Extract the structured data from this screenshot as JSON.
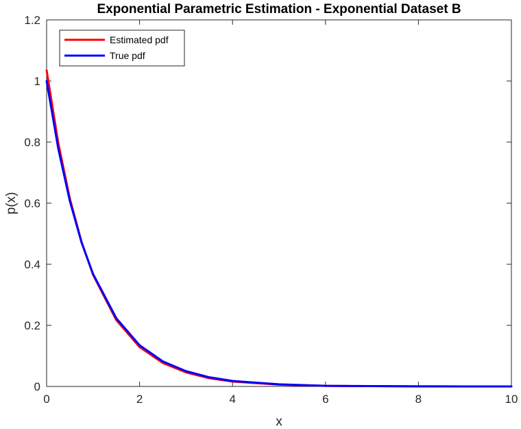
{
  "chart_data": {
    "type": "line",
    "title": "Exponential Parametric Estimation - Exponential Dataset B",
    "xlabel": "x",
    "ylabel": "p(x)",
    "xlim": [
      0,
      10
    ],
    "ylim": [
      0,
      1.2
    ],
    "x_ticks": [
      0,
      2,
      4,
      6,
      8,
      10
    ],
    "x_tick_labels": [
      "0",
      "2",
      "4",
      "6",
      "8",
      "10"
    ],
    "y_ticks": [
      0,
      0.2,
      0.4,
      0.6,
      0.8,
      1,
      1.2
    ],
    "y_tick_labels": [
      "0",
      "0.2",
      "0.4",
      "0.6",
      "0.8",
      "1",
      "1.2"
    ],
    "grid": false,
    "legend_position": "top-left",
    "x": [
      0,
      0.25,
      0.5,
      0.75,
      1,
      1.5,
      2,
      2.5,
      3,
      3.5,
      4,
      5,
      6,
      7,
      8,
      9,
      10
    ],
    "series": [
      {
        "name": "Estimated pdf",
        "color": "#ff0000",
        "values": [
          1.035,
          0.798,
          0.615,
          0.474,
          0.365,
          0.217,
          0.129,
          0.077,
          0.046,
          0.027,
          0.016,
          0.006,
          0.002,
          0.001,
          0.0003,
          0.0001,
          4e-05
        ]
      },
      {
        "name": "True pdf",
        "color": "#0000ff",
        "values": [
          1.0,
          0.779,
          0.607,
          0.472,
          0.368,
          0.223,
          0.135,
          0.082,
          0.05,
          0.03,
          0.018,
          0.007,
          0.002,
          0.001,
          0.0003,
          0.0001,
          5e-05
        ]
      }
    ]
  }
}
